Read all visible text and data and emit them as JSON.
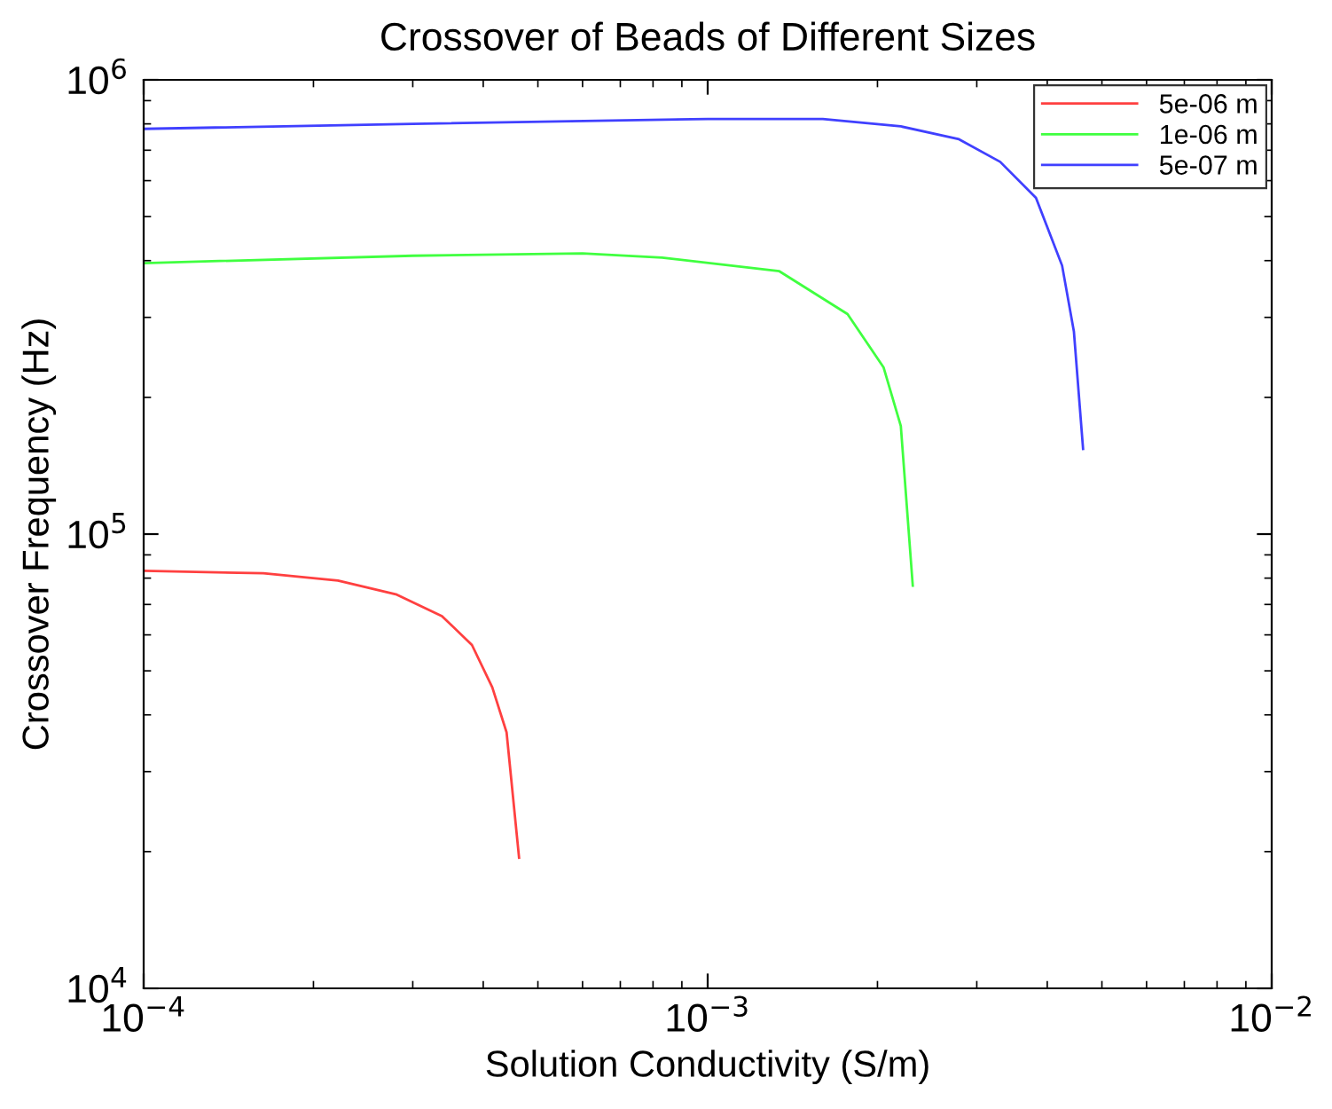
{
  "chart_data": {
    "type": "line",
    "title": "Crossover of Beads of Different Sizes",
    "xlabel": "Solution Conductivity (S/m)",
    "ylabel": "Crossover Frequency (Hz)",
    "log": "xy",
    "xlim": [
      0.0001,
      0.01
    ],
    "ylim": [
      10000,
      1000000
    ],
    "xticks": [
      {
        "value": 0.0001,
        "label": "10$^{−4}$"
      },
      {
        "value": 0.001,
        "label": "10$^{−3}$"
      },
      {
        "value": 0.01,
        "label": "10$^{−2}$"
      }
    ],
    "yticks": [
      {
        "value": 10000,
        "label": "10$^{4}$"
      },
      {
        "value": 100000,
        "label": "10$^{5}$"
      },
      {
        "value": 1000000,
        "label": "10$^{6}$"
      }
    ],
    "grid": false,
    "legend": "top right",
    "marker": "none",
    "line_style": "solid",
    "series": [
      {
        "name": "5e-06 m",
        "color": "#ff4040",
        "x": [
          0.0001,
          0.000163,
          0.000221,
          0.000281,
          0.000338,
          0.000382,
          0.000415,
          0.00044,
          0.000463
        ],
        "values": [
          83000,
          82000,
          79000,
          73600,
          66000,
          57000,
          46000,
          36600,
          19400
        ]
      },
      {
        "name": "1e-06 m",
        "color": "#40ff40",
        "x": [
          0.0001,
          0.0003,
          0.0006,
          0.00083,
          0.00134,
          0.00177,
          0.00205,
          0.0022,
          0.00231
        ],
        "values": [
          395000,
          410000,
          415000,
          406000,
          379000,
          305000,
          233000,
          173000,
          77000
        ]
      },
      {
        "name": "5e-07 m",
        "color": "#4040ff",
        "x": [
          0.0001,
          0.0003,
          0.001,
          0.00119,
          0.0016,
          0.0022,
          0.00279,
          0.0033,
          0.00382,
          0.00425,
          0.00446,
          0.00463
        ],
        "values": [
          780000,
          800000,
          820000,
          820000,
          820000,
          790000,
          740000,
          660000,
          550000,
          390000,
          279000,
          154000
        ]
      }
    ]
  }
}
